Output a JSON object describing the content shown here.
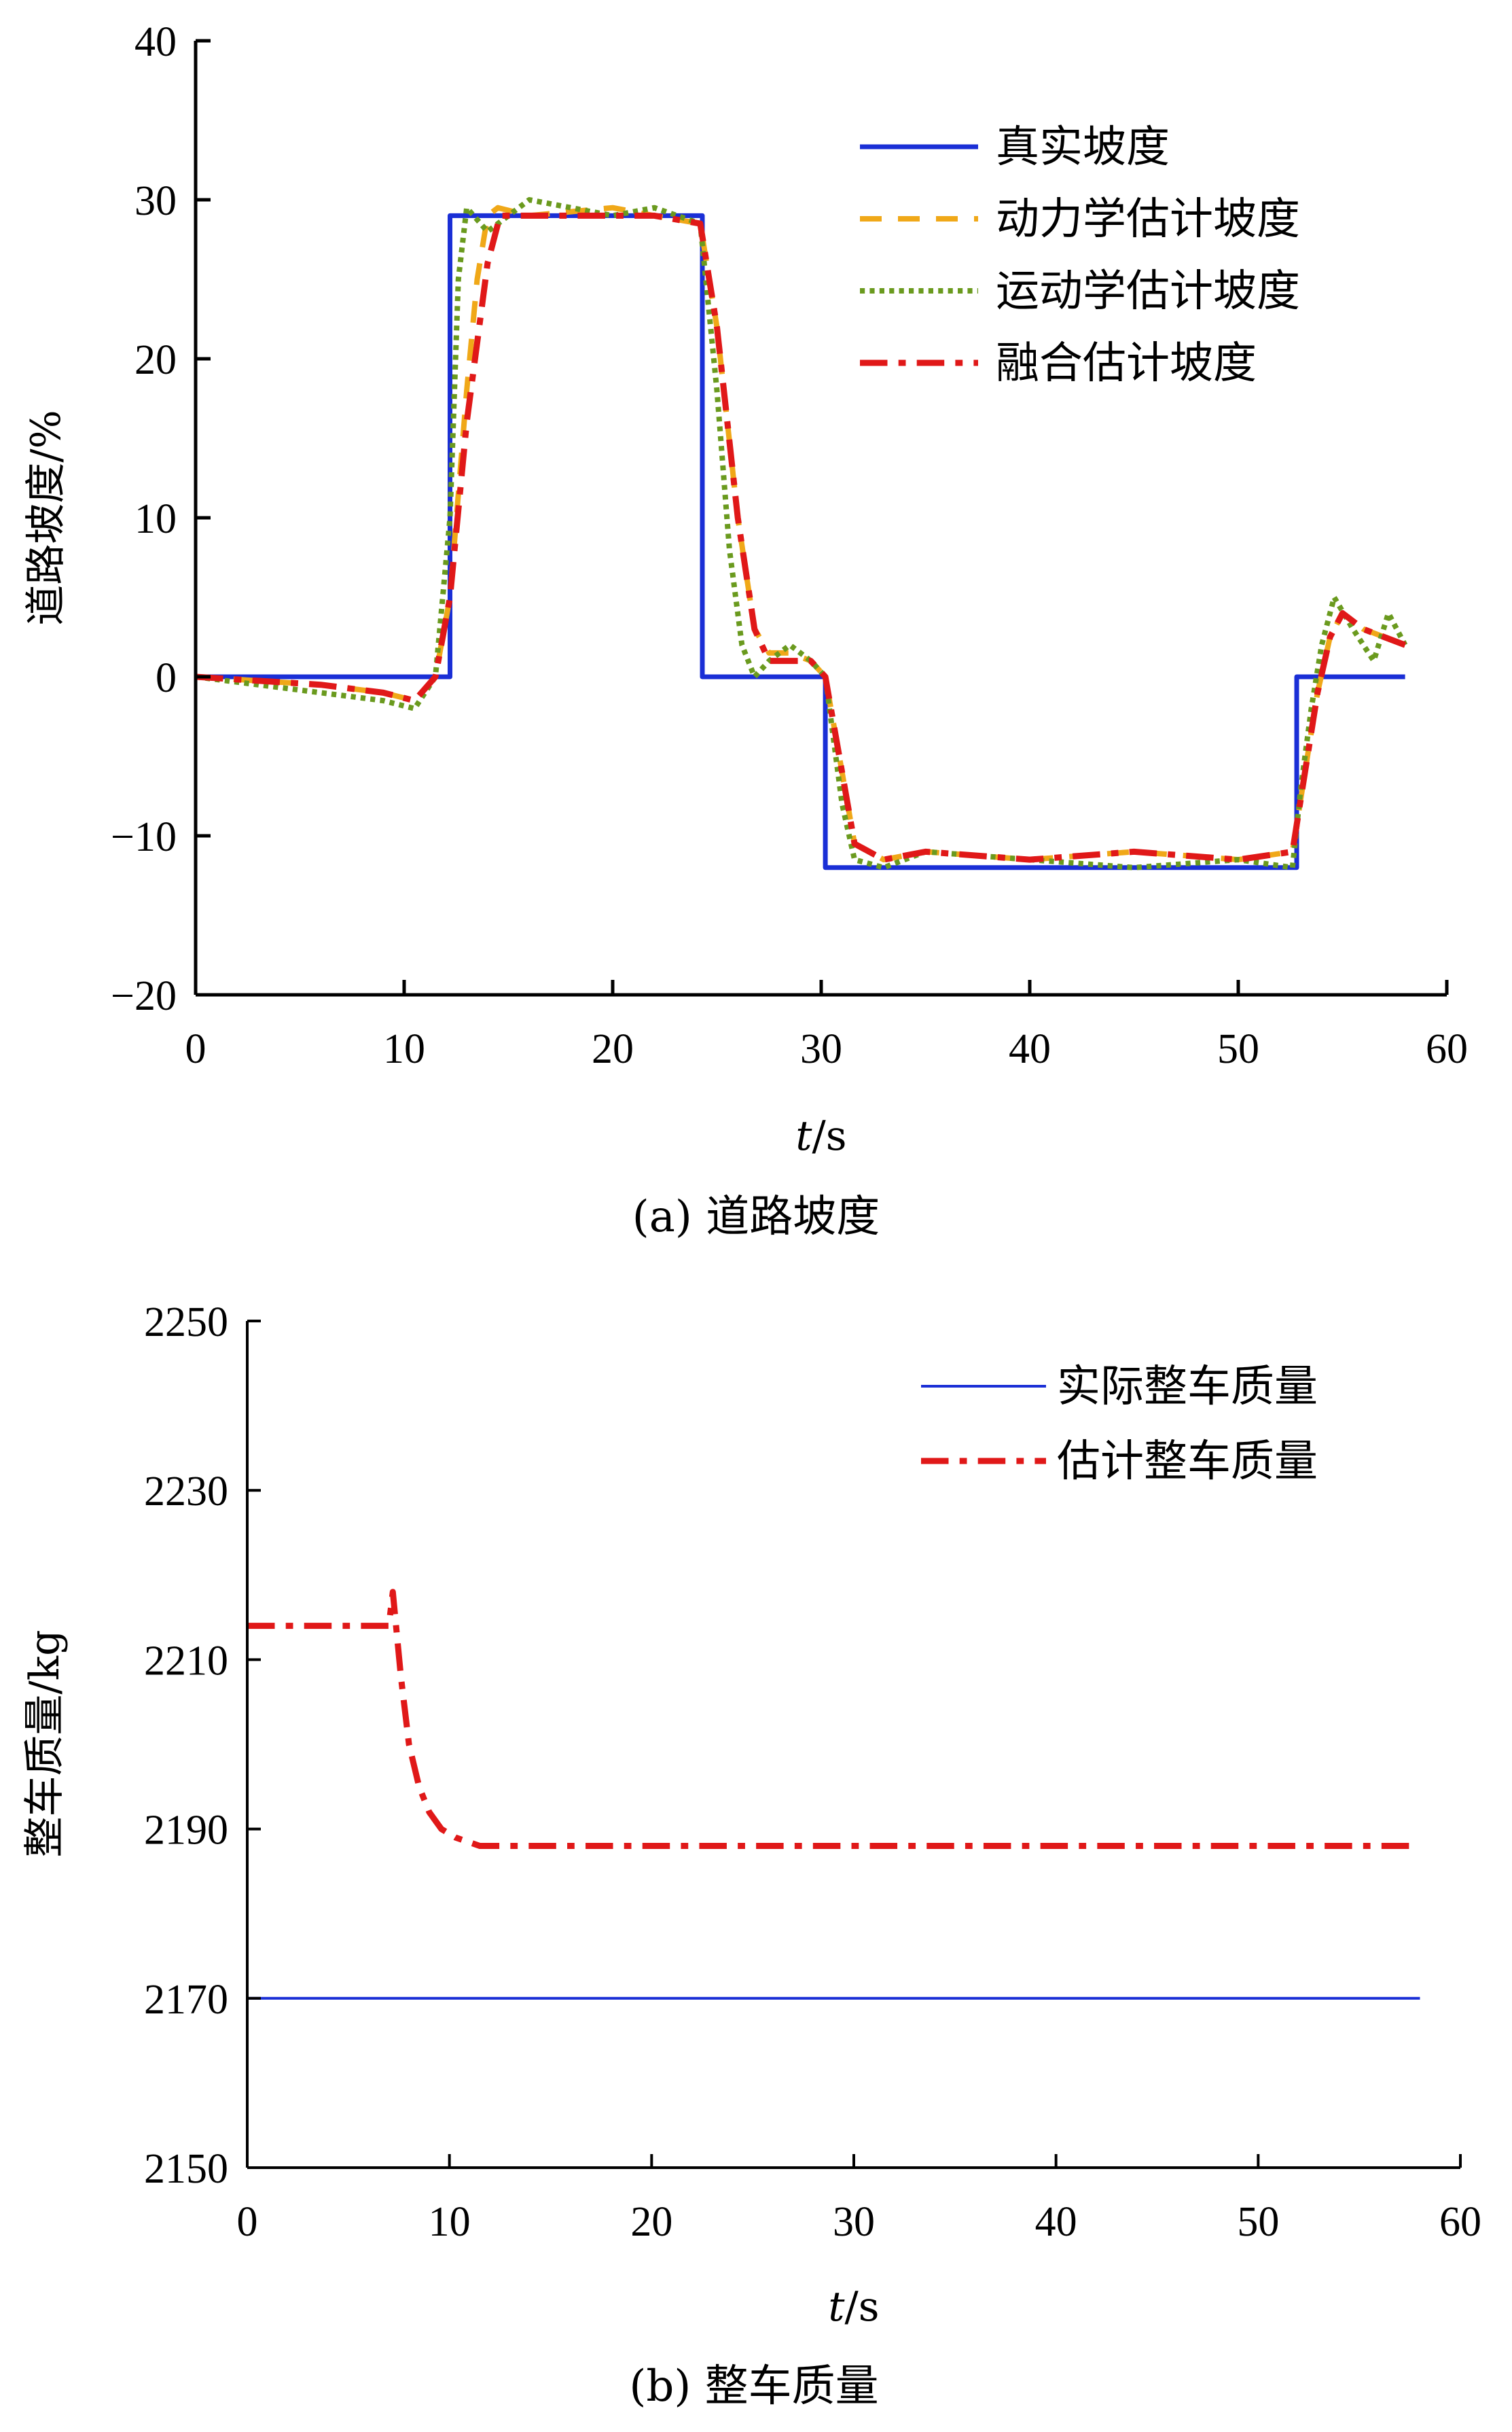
{
  "chart_data": [
    {
      "type": "line",
      "caption": "(a) 道路坡度",
      "xlabel_italic": "t",
      "xlabel_unit": "/s",
      "ylabel": "道路坡度/%",
      "xlim": [
        0,
        60
      ],
      "ylim": [
        -20,
        40
      ],
      "xticks": [
        0,
        10,
        20,
        30,
        40,
        50,
        60
      ],
      "yticks": [
        -20,
        -10,
        0,
        10,
        20,
        30,
        40
      ],
      "ytick_labels": [
        "−20",
        "−10",
        "0",
        "10",
        "20",
        "30",
        "40"
      ],
      "legend_position": "top-right",
      "series": [
        {
          "name": "真实坡度",
          "color": "#1a2fd6",
          "style": "solid",
          "x": [
            0,
            12.2,
            12.2,
            24.3,
            24.3,
            30.2,
            30.2,
            52.8,
            52.8,
            58
          ],
          "y": [
            0,
            0,
            29,
            29,
            0,
            0,
            -12,
            -12,
            0,
            0
          ]
        },
        {
          "name": "动力学估计坡度",
          "color": "#f0a818",
          "style": "dashed",
          "x": [
            0,
            6,
            9,
            10.5,
            11.5,
            12.2,
            13,
            13.5,
            14,
            14.5,
            16,
            20,
            22,
            24.2,
            25,
            26,
            26.8,
            27.5,
            28.5,
            29.5,
            30.2,
            31,
            31.6,
            33,
            35,
            40,
            45,
            50,
            52.6,
            53.2,
            53.8,
            54.4,
            55,
            56,
            57,
            58
          ],
          "y": [
            0,
            -0.5,
            -1,
            -1.5,
            0,
            5,
            18,
            25,
            29,
            29.5,
            29,
            29.5,
            29,
            28.5,
            22,
            10,
            3,
            1.5,
            1.5,
            1,
            0,
            -6,
            -10.5,
            -11.5,
            -11,
            -11.5,
            -11,
            -11.5,
            -11,
            -6,
            -1,
            2.5,
            4,
            3,
            2.5,
            2
          ]
        },
        {
          "name": "运动学估计坡度",
          "color": "#6a9a1e",
          "style": "dotted",
          "x": [
            0,
            6,
            9,
            10.5,
            11.5,
            12.2,
            12.6,
            13,
            14,
            16,
            20,
            22,
            24.2,
            25,
            25.6,
            26.2,
            26.8,
            27.5,
            28.5,
            29.5,
            30.2,
            31,
            31.6,
            33,
            35,
            40,
            45,
            50,
            52.6,
            53,
            53.5,
            54,
            54.6,
            55.5,
            56.5,
            57.2,
            58
          ],
          "y": [
            0,
            -1,
            -1.5,
            -2,
            0,
            10,
            25,
            29.5,
            28,
            30,
            29,
            29.5,
            28.5,
            18,
            8,
            2,
            0,
            1,
            2,
            1,
            0,
            -8,
            -11.5,
            -12,
            -11,
            -11.5,
            -12,
            -11.5,
            -12,
            -7,
            -2,
            2,
            5,
            3,
            1,
            4,
            2
          ]
        },
        {
          "name": "融合估计坡度",
          "color": "#e01818",
          "style": "dashdot",
          "x": [
            0,
            6,
            9,
            10.5,
            11.5,
            12.2,
            13,
            14,
            14.6,
            16,
            20,
            22,
            24.2,
            25,
            26,
            26.8,
            27.5,
            28.5,
            29.5,
            30.2,
            31,
            31.6,
            33,
            35,
            40,
            45,
            50,
            52.6,
            53.2,
            53.8,
            54.4,
            55,
            56,
            57,
            58
          ],
          "y": [
            0,
            -0.5,
            -1,
            -1.5,
            0,
            5,
            16,
            26,
            29,
            29,
            29,
            29,
            28.5,
            22,
            10,
            3,
            1,
            1,
            1,
            0,
            -6,
            -10.5,
            -11.5,
            -11,
            -11.5,
            -11,
            -11.5,
            -11,
            -6,
            -1,
            2.5,
            4,
            3,
            2.5,
            2
          ]
        }
      ]
    },
    {
      "type": "line",
      "caption": "(b) 整车质量",
      "xlabel_italic": "t",
      "xlabel_unit": "/s",
      "ylabel": "整车质量/kg",
      "xlim": [
        0,
        60
      ],
      "ylim": [
        2150,
        2250
      ],
      "xticks": [
        0,
        10,
        20,
        30,
        40,
        50,
        60
      ],
      "yticks": [
        2150,
        2170,
        2190,
        2210,
        2230,
        2250
      ],
      "ytick_labels": [
        "2150",
        "2170",
        "2190",
        "2210",
        "2230",
        "2250"
      ],
      "legend_position": "top-right",
      "series": [
        {
          "name": "实际整车质量",
          "color": "#1a2fd6",
          "style": "solid",
          "x": [
            0,
            58
          ],
          "y": [
            2170,
            2170
          ]
        },
        {
          "name": "估计整车质量",
          "color": "#e01818",
          "style": "dashdot",
          "x": [
            0,
            7.0,
            7.2,
            7.6,
            8.0,
            8.5,
            9.0,
            9.6,
            10.3,
            11.5,
            14,
            20,
            58
          ],
          "y": [
            2214,
            2214,
            2218,
            2208,
            2200,
            2195,
            2192,
            2190,
            2189,
            2188,
            2188,
            2188,
            2188
          ]
        }
      ]
    }
  ]
}
